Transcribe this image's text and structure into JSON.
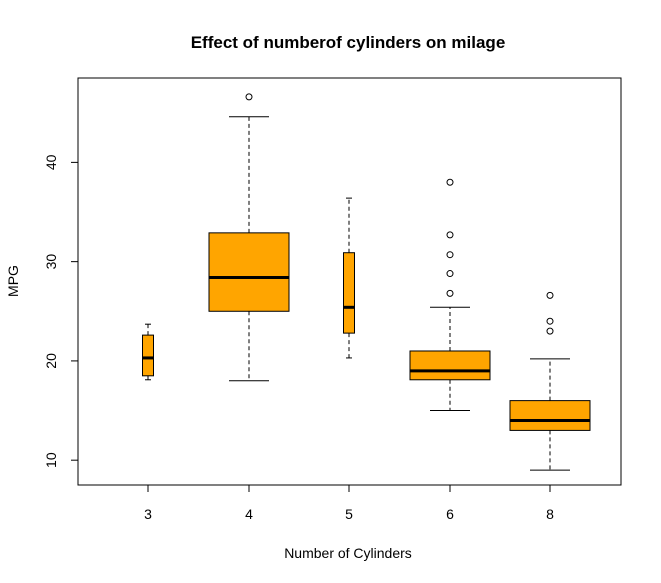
{
  "chart_data": {
    "type": "box",
    "title": "Effect of numberof cylinders on milage",
    "xlabel": "Number of Cylinders",
    "ylabel": "MPG",
    "ylim": [
      7.5,
      48.5
    ],
    "y_ticks": [
      10,
      20,
      30,
      40
    ],
    "box_color": "#FFA500",
    "categories": [
      "3",
      "4",
      "5",
      "6",
      "8"
    ],
    "boxes": [
      {
        "category": "3",
        "whisker_low": 18.1,
        "q1": 18.5,
        "median": 20.3,
        "q3": 22.6,
        "whisker_high": 23.7,
        "outliers": [],
        "narrow": true
      },
      {
        "category": "4",
        "whisker_low": 18.0,
        "q1": 25.0,
        "median": 28.4,
        "q3": 32.9,
        "whisker_high": 44.6,
        "outliers": [
          46.6
        ],
        "narrow": false
      },
      {
        "category": "5",
        "whisker_low": 20.3,
        "q1": 22.8,
        "median": 25.4,
        "q3": 30.9,
        "whisker_high": 36.4,
        "outliers": [],
        "narrow": true
      },
      {
        "category": "6",
        "whisker_low": 15.0,
        "q1": 18.1,
        "median": 19.0,
        "q3": 21.0,
        "whisker_high": 25.4,
        "outliers": [
          26.8,
          28.8,
          30.7,
          32.7,
          38.0
        ],
        "narrow": false
      },
      {
        "category": "8",
        "whisker_low": 9.0,
        "q1": 13.0,
        "median": 14.0,
        "q3": 16.0,
        "whisker_high": 20.2,
        "outliers": [
          23.0,
          24.0,
          26.6
        ],
        "narrow": false
      }
    ]
  }
}
